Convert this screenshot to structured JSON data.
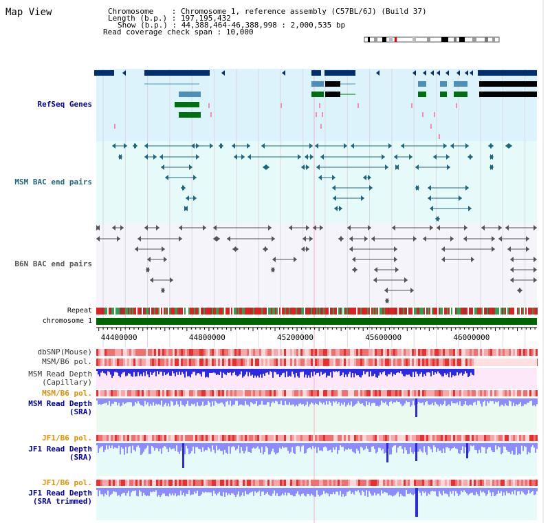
{
  "header": {
    "title": "Map View",
    "chromosome_label": "Chromosome",
    "chromosome_value": "Chromosome 1, reference assembly (C57BL/6J) (Build 37)",
    "length_label": "Length (b.p.)",
    "length_value": "197,195,432",
    "show_label": "Show (b.p.)",
    "show_value": "44,388,464-46,388,998 : 2,000,535 bp",
    "coverage_label": "Read coverage check span",
    "coverage_value": "10,000"
  },
  "tracks": {
    "refseq": "RefSeq Genes",
    "msm_bac": "MSM BAC end pairs",
    "b6n_bac": "B6N BAC end pairs",
    "repeat": "Repeat",
    "chromosome": "chromosome 1",
    "dbsnp": "dbSNP(Mouse)",
    "msm_b6_pol": "MSM/B6 pol.",
    "msm_rd_cap_1": "MSM Read Depth",
    "msm_rd_cap_2": "(Capillary)",
    "msm_b6_pol2": "MSM/B6 pol.",
    "msm_rd_sra_1": "MSM Read Depth",
    "msm_rd_sra_2": "(SRA)",
    "jf1_b6_pol": "JF1/B6 pol.",
    "jf1_rd_sra_1": "JF1 Read Depth",
    "jf1_rd_sra_2": "(SRA)",
    "jf1_b6_pol2": "JF1/B6 pol.",
    "jf1_rd_trim_1": "JF1 Read Depth",
    "jf1_rd_trim_2": "(SRA trimmed)"
  },
  "axis": {
    "ticks": [
      {
        "pos": 44400000,
        "label": "44400000"
      },
      {
        "pos": 44800000,
        "label": "44800000"
      },
      {
        "pos": 45200000,
        "label": "45200000"
      },
      {
        "pos": 45600000,
        "label": "45600000"
      },
      {
        "pos": 46000000,
        "label": "46000000"
      }
    ],
    "range": [
      44388464,
      46388998
    ]
  },
  "colors": {
    "refseq_bg": "#ddf3fb",
    "msm_bg": "#e6fafa",
    "b6n_bg": "#f4f4fa",
    "gene_dark": "#002f6b",
    "gene_blue": "#4c90b8",
    "gene_green": "#006f10",
    "msm_text": "#1f6680",
    "b6n_text": "#555555",
    "chromosome_bar": "#006400",
    "orange_text": "#e09000",
    "blue_text": "#0000a0",
    "read_depth_dark": "#2a2ae0",
    "read_depth_light": "#8c8cff"
  }
}
